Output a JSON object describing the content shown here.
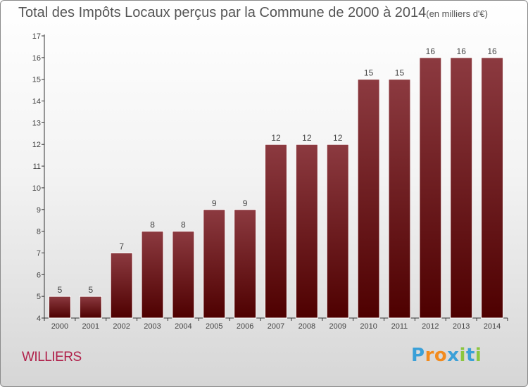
{
  "title": "Total des Impôts Locaux perçus par la Commune de 2000 à 2014",
  "title_unit": "(en milliers d'€)",
  "commune": "WILLIERS",
  "logo": {
    "text": "Proxiti",
    "letter_colors": [
      "#3aa0d8",
      "#f28b1e",
      "#f28b1e",
      "#3aa0d8",
      "#8cc63f",
      "#3aa0d8",
      "#8cc63f"
    ]
  },
  "colors": {
    "bar_top": "#8c3a40",
    "bar_bottom": "#4e0000",
    "axis": "#333333",
    "text": "#444444",
    "commune": "#b0204a"
  },
  "chart_data": {
    "type": "bar",
    "title": "Total des Impôts Locaux perçus par la Commune de 2000 à 2014",
    "xlabel": "",
    "ylabel": "",
    "categories": [
      "2000",
      "2001",
      "2002",
      "2003",
      "2004",
      "2005",
      "2006",
      "2007",
      "2008",
      "2009",
      "2010",
      "2011",
      "2012",
      "2013",
      "2014"
    ],
    "values": [
      5,
      5,
      7,
      8,
      8,
      9,
      9,
      12,
      12,
      12,
      15,
      15,
      16,
      16,
      16
    ],
    "ylim": [
      4,
      17
    ],
    "yticks": [
      4,
      5,
      6,
      7,
      8,
      9,
      10,
      11,
      12,
      13,
      14,
      15,
      16,
      17
    ],
    "grid": false,
    "data_labels": true
  }
}
